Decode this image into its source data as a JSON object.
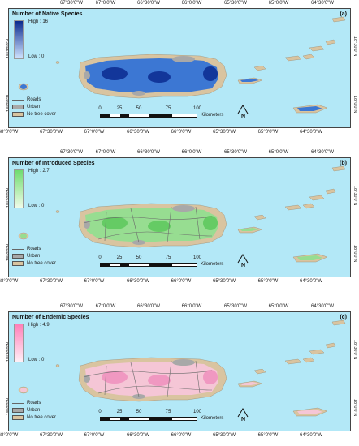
{
  "axes": {
    "top_longitudes": [
      "67°30'0\"W",
      "67°0'0\"W",
      "66°30'0\"W",
      "66°0'0\"W",
      "65°30'0\"W",
      "65°0'0\"W",
      "64°30'0\"W"
    ],
    "bottom_longitudes": [
      "68°0'0\"W",
      "67°30'0\"W",
      "67°0'0\"W",
      "66°30'0\"W",
      "66°0'0\"W",
      "65°30'0\"W",
      "65°0'0\"W",
      "64°30'0\"W"
    ],
    "right_latitudes": [
      "18°30'0\"N",
      "18°0'0\"N"
    ],
    "left_latitudes": [
      "18°30'0\"N",
      "18°0'0\"N"
    ]
  },
  "legend": {
    "roads": "Roads",
    "urban": "Urban",
    "no_tree_cover": "No tree cover",
    "colors": {
      "urban": "#a8a8a8",
      "no_tree_cover": "#d9c4a0",
      "water": "#b3e8f7",
      "roads": "#6b6b6b"
    }
  },
  "scale": {
    "ticks": [
      "0",
      "25",
      "50",
      "75",
      "100"
    ],
    "unit": "Kilometers"
  },
  "north_label": "N",
  "panels": [
    {
      "letter": "(a)",
      "title": "Number of Native Species",
      "high": "High : 16",
      "low": "Low : 0",
      "ramp_high": "#0a2a8f",
      "ramp_low": "#cfe3ff",
      "fill": "#2a6fd8",
      "fill_dark": "#0a2a8f"
    },
    {
      "letter": "(b)",
      "title": "Number of Introduced Species",
      "high": "High : 2.7",
      "low": "Low : 0",
      "ramp_high": "#6fdc6f",
      "ramp_low": "#f0fbe8",
      "fill": "#8fe08f",
      "fill_dark": "#5cc85c"
    },
    {
      "letter": "(c)",
      "title": "Number of Endemic Species",
      "high": "High : 4.9",
      "low": "Low : 0",
      "ramp_high": "#ff7fb8",
      "ramp_low": "#fff0f6",
      "fill": "#f7c6dc",
      "fill_dark": "#ee8fbd"
    }
  ]
}
